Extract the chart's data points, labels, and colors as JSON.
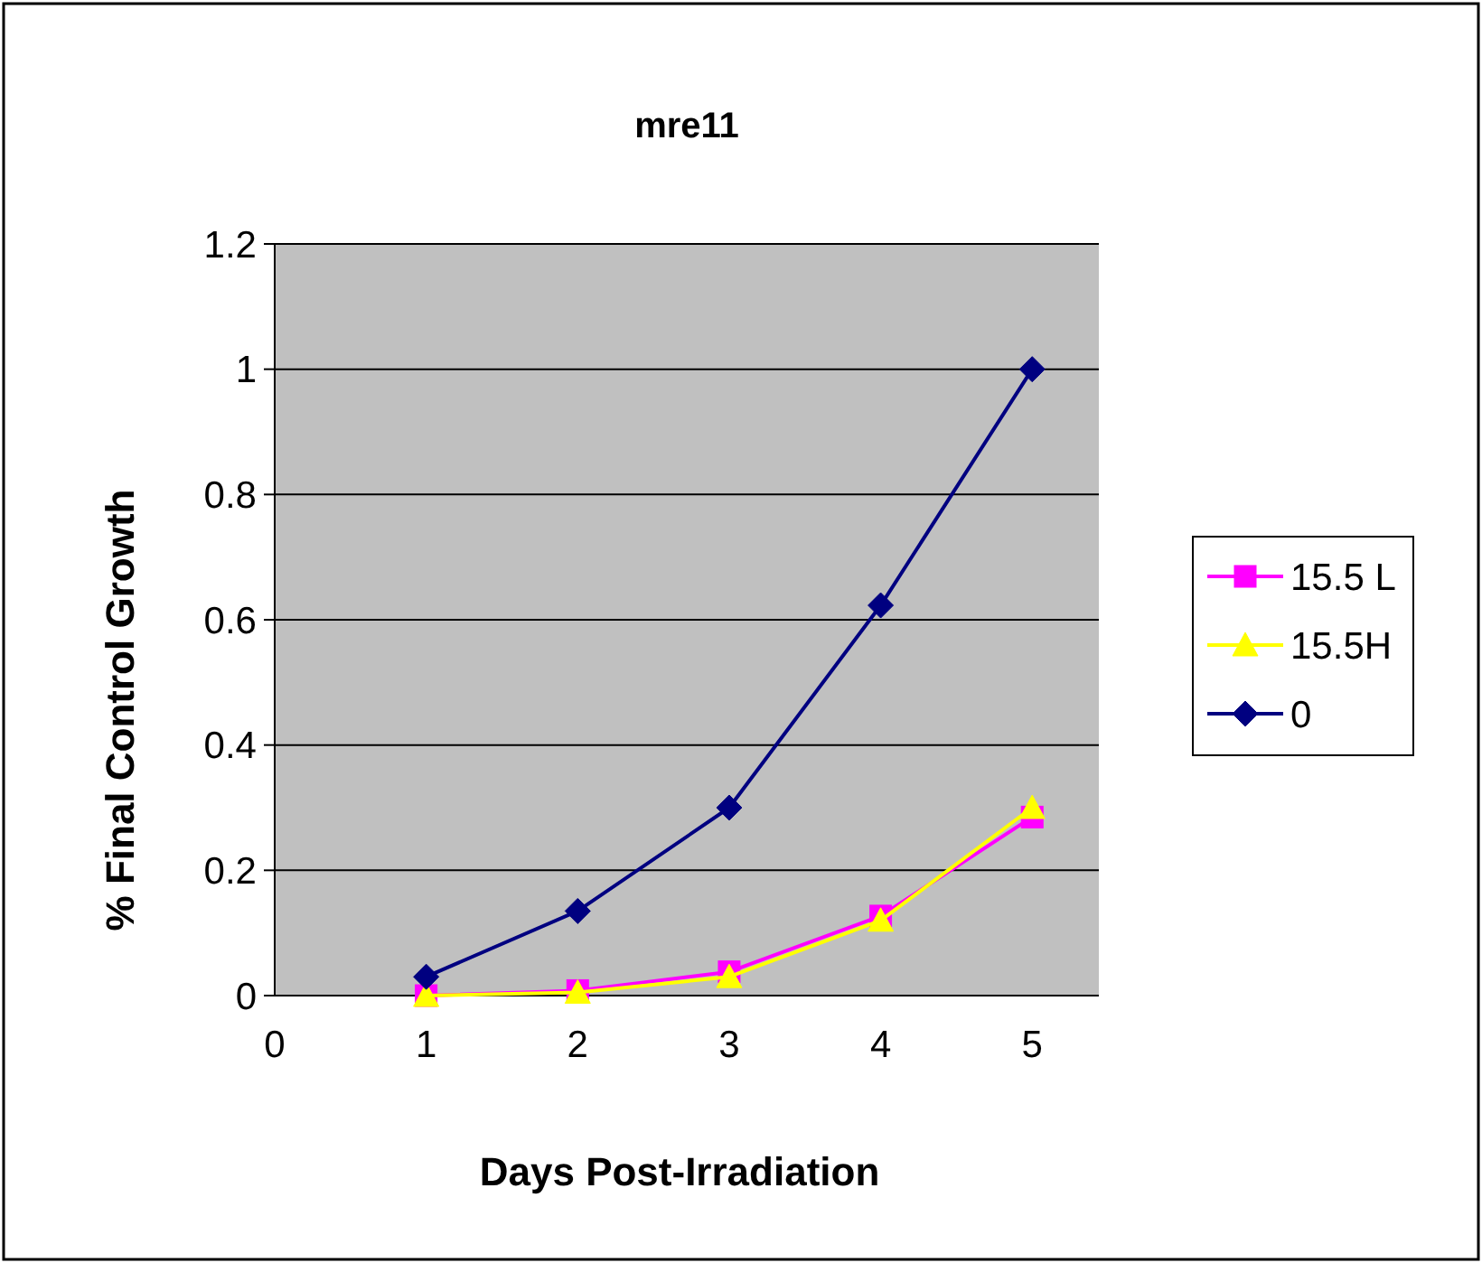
{
  "chart_data": {
    "type": "line",
    "title": "mre11",
    "xlabel": "Days Post-Irradiation",
    "ylabel": "% Final Control Growth",
    "x": [
      1,
      2,
      3,
      4,
      5
    ],
    "series": [
      {
        "name": "15.5 L",
        "color": "#ff00ff",
        "marker": "square",
        "values": [
          0,
          0.008,
          0.038,
          0.127,
          0.285
        ]
      },
      {
        "name": "15.5H",
        "color": "#ffff00",
        "marker": "triangle",
        "values": [
          0,
          0.005,
          0.03,
          0.12,
          0.3
        ]
      },
      {
        "name": "0",
        "color": "#000080",
        "marker": "diamond",
        "values": [
          0.03,
          0.135,
          0.3,
          0.623,
          1.0
        ]
      }
    ],
    "xlim": [
      0,
      5.44
    ],
    "xticks": [
      0,
      1,
      2,
      3,
      4,
      5
    ],
    "ylim": [
      0,
      1.2
    ],
    "yticks": [
      0,
      0.2,
      0.4,
      0.6,
      0.8,
      1,
      1.2
    ],
    "grid": "y",
    "legend": "right"
  }
}
